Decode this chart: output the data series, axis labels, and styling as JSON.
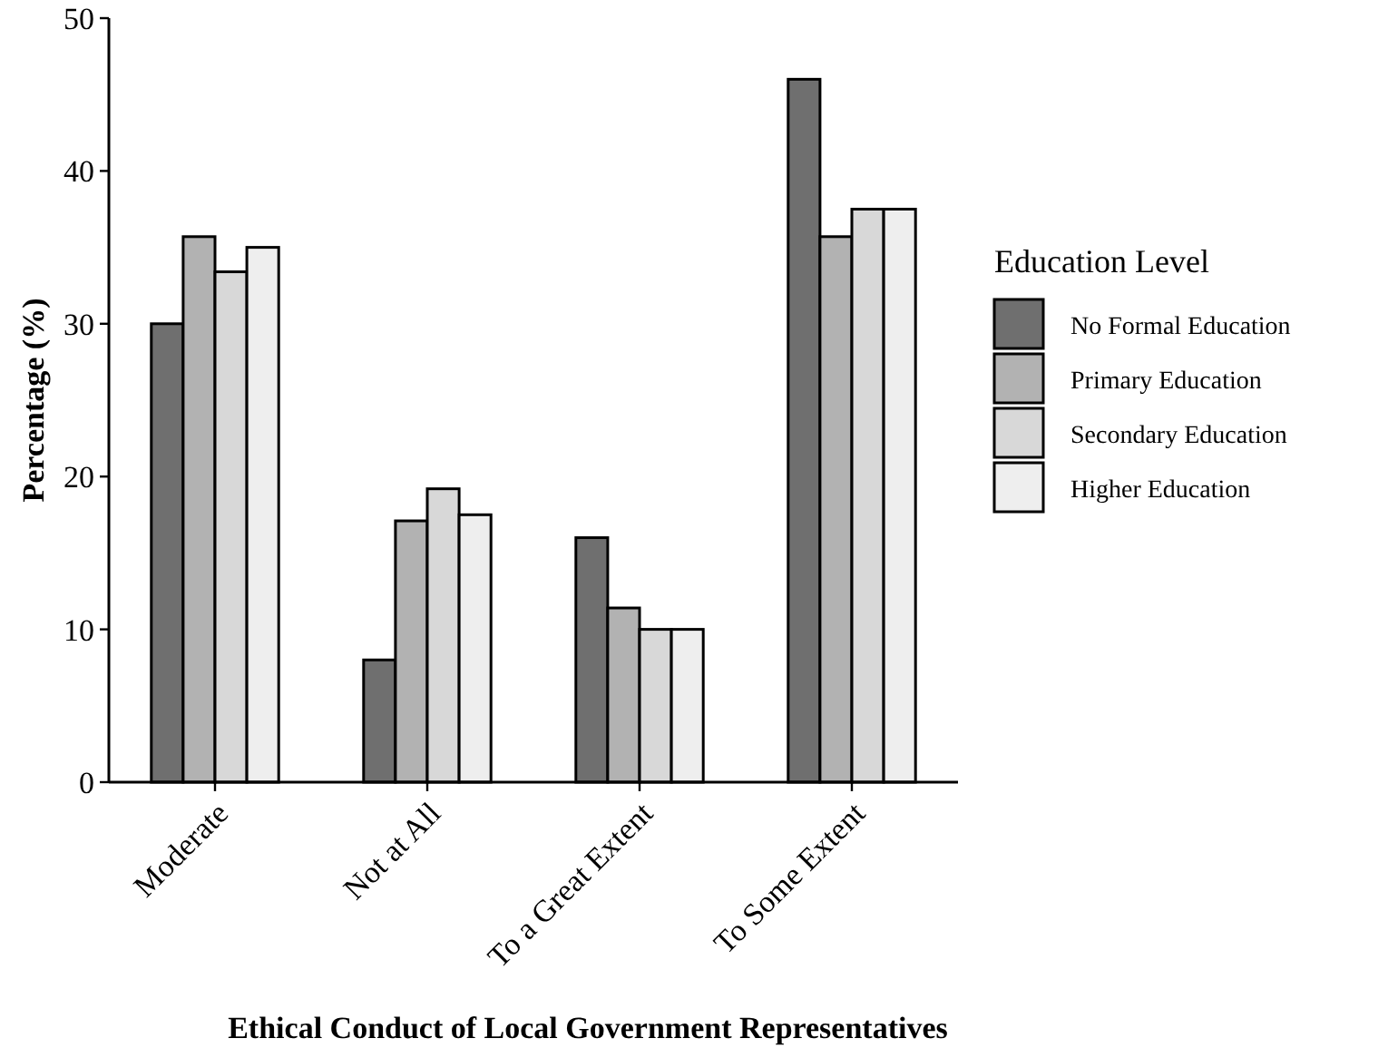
{
  "chart_data": {
    "type": "bar",
    "xlabel": "Ethical Conduct of Local Government Representatives",
    "ylabel": "Percentage (%)",
    "legend_title": "Education Level",
    "categories": [
      "Moderate",
      "Not at All",
      "To a Great Extent",
      "To Some Extent"
    ],
    "series": [
      {
        "name": "No Formal Education",
        "color": "#6f6f6f",
        "values": [
          30,
          8,
          16,
          46
        ]
      },
      {
        "name": "Primary Education",
        "color": "#b2b2b2",
        "values": [
          35.7,
          17.1,
          11.4,
          35.7
        ]
      },
      {
        "name": "Secondary Education",
        "color": "#d8d8d8",
        "values": [
          33.4,
          19.2,
          10,
          37.5
        ]
      },
      {
        "name": "Higher Education",
        "color": "#eeeeee",
        "values": [
          35,
          17.5,
          10,
          37.5
        ]
      }
    ],
    "ylim": [
      0,
      50
    ],
    "yticks": [
      0,
      10,
      20,
      30,
      40,
      50
    ],
    "grid": false,
    "legend": "right"
  }
}
